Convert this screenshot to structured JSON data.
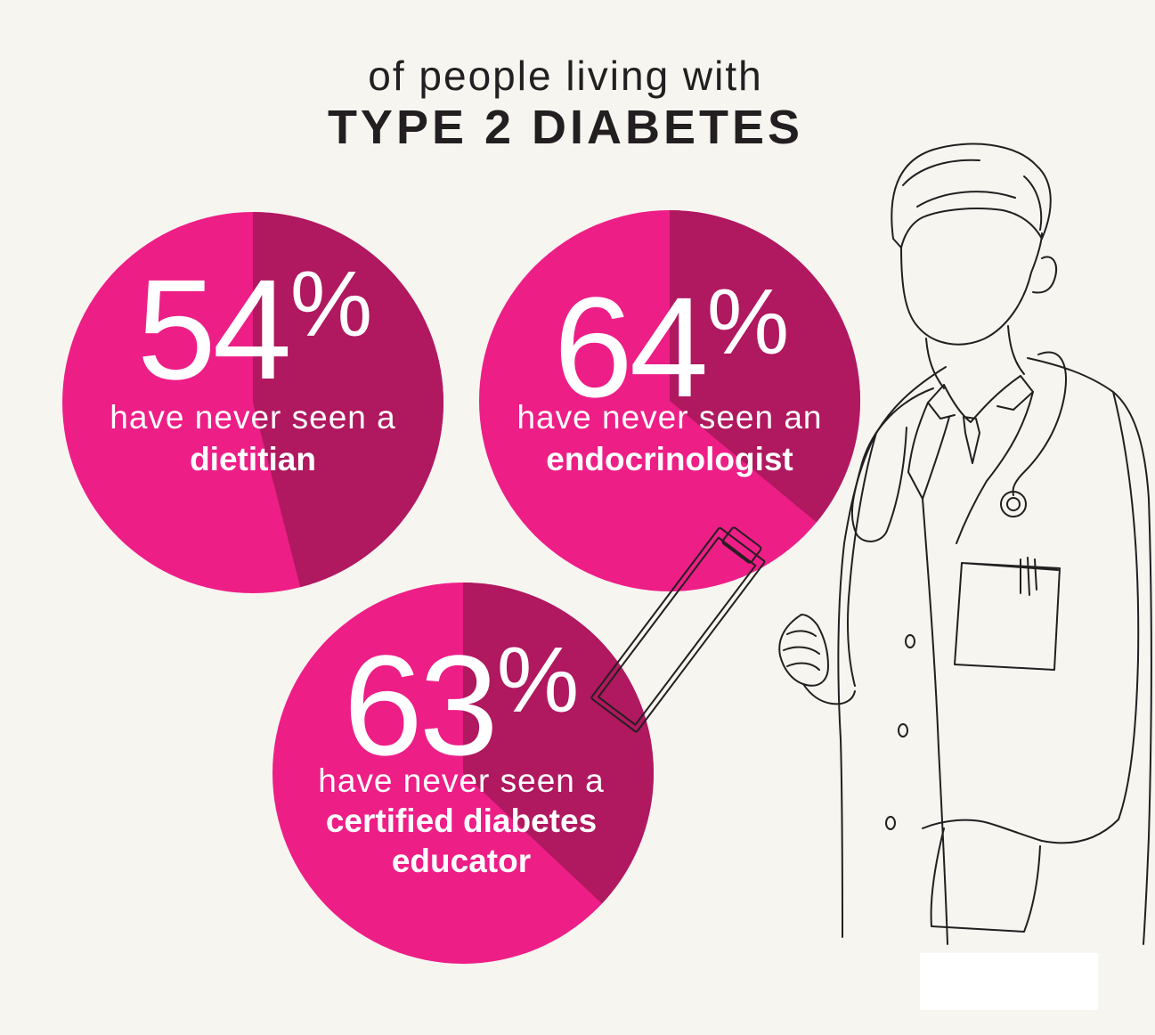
{
  "header": {
    "subtitle": "of people living with",
    "title": "TYPE 2 DIABETES"
  },
  "chart_data": {
    "type": "pie",
    "colors": {
      "highlight": "#ee1e87",
      "remainder": "#b0185f",
      "text": "#ffffff",
      "ink": "#231f20",
      "background": "#f6f5f0"
    },
    "charts": [
      {
        "value": 54,
        "value_label": "54",
        "percent_symbol": "%",
        "line1": "have never seen a",
        "line2": "dietitian",
        "line3": ""
      },
      {
        "value": 64,
        "value_label": "64",
        "percent_symbol": "%",
        "line1": "have never seen an",
        "line2": "endocrinologist",
        "line3": ""
      },
      {
        "value": 63,
        "value_label": "63",
        "percent_symbol": "%",
        "line1": "have never seen a",
        "line2": "certified diabetes",
        "line3": "educator"
      }
    ]
  },
  "illustration": {
    "name": "doctor-line-drawing"
  }
}
